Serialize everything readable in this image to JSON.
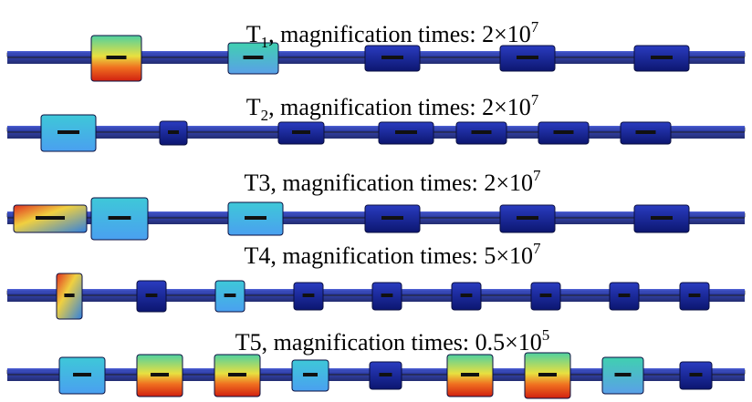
{
  "panels": [
    {
      "title": "T",
      "subscript": "1",
      "text": ", magnification times: 2×10",
      "superscript": "7"
    },
    {
      "title": "T",
      "subscript": "2",
      "text": ", magnification times: 2×10",
      "superscript": "7"
    },
    {
      "title": "T3",
      "text": ", magnification times: 2×10",
      "superscript": "7"
    },
    {
      "title": "T4",
      "text": ", magnification times: 5×10",
      "superscript": "7"
    },
    {
      "title": "T5",
      "text": ", magnification times: 0.5×10",
      "superscript": "5"
    }
  ]
}
